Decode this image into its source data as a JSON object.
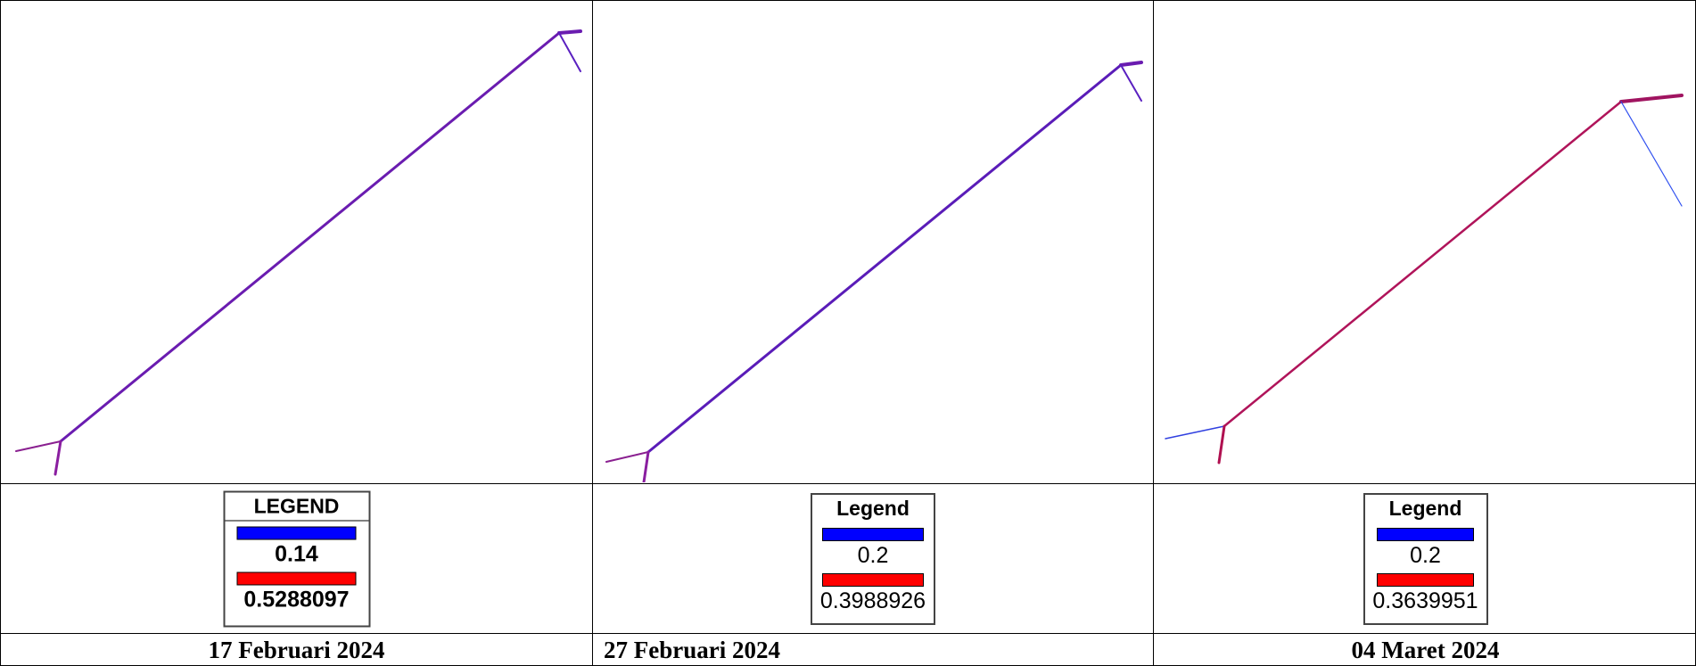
{
  "panels": [
    {
      "legend": {
        "title": "LEGEND",
        "items": [
          "0.14",
          "0.5288097"
        ]
      },
      "date": "17 Februari 2024"
    },
    {
      "legend": {
        "title": "Legend",
        "items": [
          "0.2",
          "0.3988926"
        ]
      },
      "date": "27 Februari 2024"
    },
    {
      "legend": {
        "title": "Legend",
        "items": [
          "0.2",
          "0.3639951"
        ]
      },
      "date": "04 Maret 2024"
    }
  ]
}
